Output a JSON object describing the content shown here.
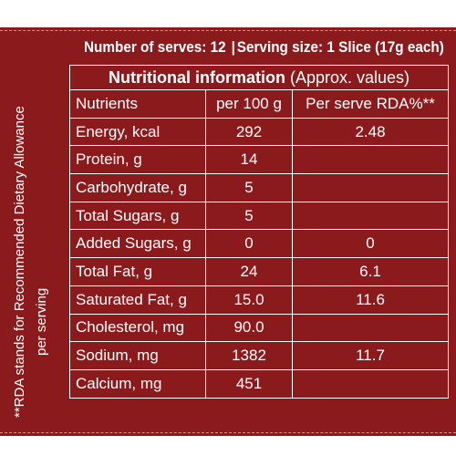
{
  "serving_info": {
    "serves_label": "Number of serves: 12",
    "separator": "|",
    "size_label": "Serving size: 1 Slice (17g each)"
  },
  "table": {
    "title_main": "Nutritional information",
    "title_sub": "(Approx. values)",
    "headers": [
      "Nutrients",
      "per 100 g",
      "Per serve RDA%**"
    ],
    "rows": [
      {
        "nutrient": "Energy, kcal",
        "per100": "292",
        "rda": "2.48"
      },
      {
        "nutrient": "Protein, g",
        "per100": "14",
        "rda": ""
      },
      {
        "nutrient": "Carbohydrate, g",
        "per100": "5",
        "rda": ""
      },
      {
        "nutrient": "Total Sugars, g",
        "per100": "5",
        "rda": ""
      },
      {
        "nutrient": "Added Sugars, g",
        "per100": "0",
        "rda": "0"
      },
      {
        "nutrient": "Total Fat, g",
        "per100": "24",
        "rda": "6.1"
      },
      {
        "nutrient": "Saturated Fat, g",
        "per100": "15.0",
        "rda": "11.6"
      },
      {
        "nutrient": "Cholesterol, mg",
        "per100": "90.0",
        "rda": ""
      },
      {
        "nutrient": "Sodium, mg",
        "per100": "1382",
        "rda": "11.7"
      },
      {
        "nutrient": "Calcium, mg",
        "per100": "451",
        "rda": ""
      }
    ]
  },
  "footnote": {
    "line1": "**RDA stands for Recommended Dietary Allowance",
    "line2": "per serving"
  },
  "colors": {
    "panel_background": "#8a1a1c",
    "text": "#ffffff",
    "page_background": "#ffffff"
  }
}
